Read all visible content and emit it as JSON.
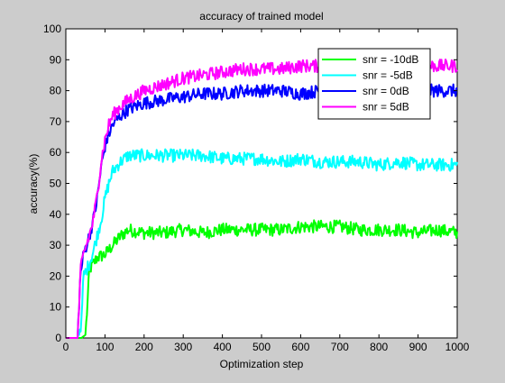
{
  "chart_data": {
    "type": "line",
    "title": "accuracy of trained model",
    "xlabel": "Optimization step",
    "ylabel": "accuracy(%)",
    "xlim": [
      0,
      1000
    ],
    "ylim": [
      0,
      100
    ],
    "xticks": [
      0,
      100,
      200,
      300,
      400,
      500,
      600,
      700,
      800,
      900,
      1000
    ],
    "yticks": [
      0,
      10,
      20,
      30,
      40,
      50,
      60,
      70,
      80,
      90,
      100
    ],
    "grid": false,
    "legend_position": "top-right",
    "series": [
      {
        "name": "snr = -10dB",
        "color": "#00ff00",
        "points": [
          [
            0,
            0
          ],
          [
            30,
            0
          ],
          [
            40,
            0
          ],
          [
            50,
            1
          ],
          [
            55,
            10
          ],
          [
            60,
            22
          ],
          [
            70,
            24
          ],
          [
            80,
            26
          ],
          [
            100,
            27
          ],
          [
            120,
            30
          ],
          [
            140,
            33
          ],
          [
            160,
            35
          ],
          [
            200,
            34
          ],
          [
            250,
            34
          ],
          [
            300,
            35
          ],
          [
            350,
            34
          ],
          [
            400,
            35
          ],
          [
            450,
            35
          ],
          [
            500,
            35
          ],
          [
            550,
            35
          ],
          [
            600,
            36
          ],
          [
            650,
            36
          ],
          [
            700,
            36
          ],
          [
            750,
            35
          ],
          [
            800,
            35
          ],
          [
            850,
            35
          ],
          [
            900,
            34
          ],
          [
            950,
            35
          ],
          [
            1000,
            34
          ]
        ]
      },
      {
        "name": "snr = -5dB",
        "color": "#00ffff",
        "points": [
          [
            0,
            0
          ],
          [
            30,
            0
          ],
          [
            40,
            5
          ],
          [
            45,
            20
          ],
          [
            60,
            24
          ],
          [
            70,
            28
          ],
          [
            80,
            33
          ],
          [
            90,
            38
          ],
          [
            100,
            45
          ],
          [
            110,
            50
          ],
          [
            120,
            54
          ],
          [
            140,
            57
          ],
          [
            160,
            59
          ],
          [
            200,
            59
          ],
          [
            250,
            59
          ],
          [
            300,
            59
          ],
          [
            350,
            59
          ],
          [
            400,
            58
          ],
          [
            450,
            58
          ],
          [
            500,
            58
          ],
          [
            550,
            57
          ],
          [
            600,
            58
          ],
          [
            650,
            57
          ],
          [
            700,
            57
          ],
          [
            750,
            57
          ],
          [
            800,
            56
          ],
          [
            850,
            57
          ],
          [
            900,
            56
          ],
          [
            950,
            56
          ],
          [
            1000,
            56
          ]
        ]
      },
      {
        "name": "snr = 0dB",
        "color": "#0000ff",
        "points": [
          [
            0,
            0
          ],
          [
            30,
            0
          ],
          [
            37,
            20
          ],
          [
            45,
            27
          ],
          [
            60,
            33
          ],
          [
            70,
            38
          ],
          [
            80,
            45
          ],
          [
            90,
            55
          ],
          [
            100,
            62
          ],
          [
            110,
            66
          ],
          [
            120,
            69
          ],
          [
            140,
            72
          ],
          [
            160,
            74
          ],
          [
            200,
            76
          ],
          [
            250,
            77
          ],
          [
            300,
            78
          ],
          [
            350,
            79
          ],
          [
            400,
            79
          ],
          [
            450,
            80
          ],
          [
            500,
            80
          ],
          [
            550,
            80
          ],
          [
            600,
            79
          ],
          [
            650,
            80
          ],
          [
            700,
            80
          ],
          [
            750,
            80
          ],
          [
            800,
            80
          ],
          [
            850,
            80
          ],
          [
            900,
            80
          ],
          [
            950,
            80
          ],
          [
            1000,
            80
          ]
        ]
      },
      {
        "name": "snr = 5dB",
        "color": "#ff00ff",
        "points": [
          [
            0,
            0
          ],
          [
            30,
            0
          ],
          [
            38,
            22
          ],
          [
            45,
            27
          ],
          [
            60,
            33
          ],
          [
            70,
            38
          ],
          [
            80,
            46
          ],
          [
            90,
            57
          ],
          [
            100,
            64
          ],
          [
            110,
            69
          ],
          [
            120,
            72
          ],
          [
            140,
            75
          ],
          [
            160,
            77
          ],
          [
            200,
            80
          ],
          [
            250,
            82
          ],
          [
            300,
            84
          ],
          [
            350,
            85
          ],
          [
            400,
            86
          ],
          [
            450,
            87
          ],
          [
            500,
            87
          ],
          [
            550,
            87
          ],
          [
            600,
            88
          ],
          [
            650,
            88
          ],
          [
            700,
            88
          ],
          [
            750,
            88
          ],
          [
            800,
            88
          ],
          [
            850,
            88
          ],
          [
            900,
            88
          ],
          [
            950,
            88
          ],
          [
            1000,
            88
          ]
        ]
      }
    ]
  }
}
